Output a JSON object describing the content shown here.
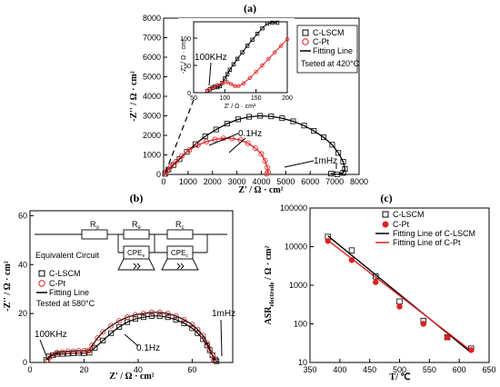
{
  "chart_data": [
    {
      "panel": "(a)",
      "type": "scatter",
      "xlabel": "Z' / Ω · cm²",
      "ylabel": "-Z'' / Ω · cm²",
      "xlim": [
        0,
        8000
      ],
      "ylim": [
        0,
        8000
      ],
      "xticks": [
        "0",
        "1000",
        "2000",
        "3000",
        "4000",
        "5000",
        "6000",
        "7000",
        "8000"
      ],
      "yticks": [
        "0",
        "1000",
        "2000",
        "3000",
        "4000",
        "5000",
        "6000",
        "7000",
        "8000"
      ],
      "legend": {
        "position": "top-right",
        "items": [
          "C-LSCM",
          "C-Pt",
          "Fitting Line"
        ],
        "note": "Tseted at 420°C"
      },
      "annotations": [
        "0.1Hz",
        "1mHz"
      ],
      "series": [
        {
          "name": "C-LSCM",
          "marker": "square",
          "color": "#000000",
          "x": [
            60,
            200,
            400,
            650,
            950,
            1300,
            1700,
            2150,
            2600,
            3050,
            3500,
            3950,
            4400,
            4850,
            5300,
            5750,
            6150,
            6550,
            6900,
            7150,
            7350,
            7420,
            7350,
            7100,
            6850
          ],
          "y": [
            30,
            250,
            480,
            780,
            1150,
            1550,
            1950,
            2300,
            2600,
            2820,
            2950,
            3000,
            2970,
            2880,
            2720,
            2500,
            2230,
            1900,
            1520,
            1100,
            650,
            280,
            80,
            0,
            40
          ]
        },
        {
          "name": "C-Pt",
          "marker": "circle",
          "color": "#e02020",
          "x": [
            60,
            150,
            300,
            500,
            750,
            1050,
            1400,
            1750,
            2100,
            2450,
            2800,
            3150,
            3450,
            3750,
            4000,
            4150,
            4250,
            4280,
            4220
          ],
          "y": [
            30,
            200,
            400,
            650,
            950,
            1250,
            1500,
            1680,
            1790,
            1850,
            1840,
            1760,
            1600,
            1350,
            1050,
            700,
            350,
            120,
            30
          ]
        }
      ],
      "inset": {
        "xlabel": "Z' / Ω · cm²",
        "ylabel": "-Z'' / Ω · cm²",
        "xlim": [
          50,
          200
        ],
        "ylim": [
          0,
          130
        ],
        "xticks": [
          "50",
          "100",
          "150",
          "200"
        ],
        "yticks": [
          "0",
          "50",
          "100"
        ],
        "annotation": "100KHz",
        "series": [
          {
            "name": "C-LSCM",
            "x": [
              72,
              76,
              80,
              84,
              88,
              92,
              96,
              100,
              104,
              108,
              114,
              120,
              128,
              136,
              144,
              152,
              160,
              168,
              176,
              184
            ],
            "y": [
              3,
              6,
              9,
              11,
              10,
              12,
              18,
              26,
              34,
              42,
              52,
              62,
              74,
              86,
              97,
              108,
              118,
              127,
              134,
              140
            ]
          },
          {
            "name": "C-Pt",
            "x": [
              72,
              80,
              88,
              96,
              104,
              110,
              116,
              122,
              130,
              140,
              150,
              160,
              170,
              180,
              190,
              200
            ],
            "y": [
              4,
              8,
              14,
              18,
              19,
              16,
              12,
              12,
              17,
              27,
              38,
              50,
              62,
              74,
              86,
              98
            ]
          }
        ]
      }
    },
    {
      "panel": "(b)",
      "type": "scatter",
      "xlabel": "Z' / Ω · cm²",
      "ylabel": "-Z'' / Ω · cm²",
      "xlim": [
        0,
        75
      ],
      "ylim": [
        0,
        62
      ],
      "xticks": [
        "0",
        "20",
        "40",
        "60"
      ],
      "yticks": [
        "0",
        "20",
        "40",
        "60"
      ],
      "circuit": {
        "label": "Equivalent Circuit",
        "elements": [
          "R",
          "R",
          "R",
          "CPE",
          "CPE"
        ],
        "subscripts": [
          "o",
          "e",
          "c",
          "e",
          "c"
        ]
      },
      "legend": {
        "position": "center-left",
        "items": [
          "C-LSCM",
          "C-Pt",
          "Fitting Line"
        ],
        "note": "Tested at 580°C"
      },
      "annotations": [
        "100KHz",
        "0.1Hz",
        "1mHz"
      ],
      "series": [
        {
          "name": "C-LSCM",
          "marker": "square",
          "color": "#000000",
          "x": [
            6,
            7,
            8.5,
            10,
            12,
            14,
            16,
            18,
            20,
            22,
            24,
            27,
            30,
            33,
            36,
            39,
            42,
            45,
            48,
            51,
            54,
            57,
            60,
            62,
            64,
            65.5,
            66.5,
            67.5,
            68.5,
            69
          ],
          "y": [
            1,
            2.5,
            3,
            3.5,
            3.5,
            3.6,
            3.8,
            3.9,
            3.8,
            4,
            6,
            9,
            12,
            14.5,
            16.5,
            17.8,
            18.5,
            19,
            19,
            18.5,
            17.5,
            16,
            14,
            12,
            9.5,
            7,
            5,
            3,
            1.2,
            0.5
          ]
        },
        {
          "name": "C-Pt",
          "marker": "circle",
          "color": "#e02020",
          "x": [
            6.5,
            8,
            10,
            12,
            14,
            16,
            18,
            20,
            21,
            22,
            23,
            25,
            27,
            30,
            33,
            36,
            39,
            42,
            45,
            48,
            51,
            54,
            57,
            60,
            62,
            64,
            65.5,
            66.5,
            67.5,
            68
          ],
          "y": [
            1,
            3,
            4,
            4.2,
            4.5,
            4.6,
            4.8,
            4.8,
            4.7,
            5,
            7,
            10,
            12.5,
            15,
            17,
            18.5,
            19.5,
            20,
            20.5,
            20.5,
            20,
            19,
            17.5,
            15.5,
            13.5,
            11,
            8,
            5.5,
            3,
            1
          ]
        }
      ]
    },
    {
      "panel": "(c)",
      "type": "scatter",
      "xlabel": "T/ ℃",
      "ylabel": "ASR",
      "ylabel_sub": "electrode",
      "ylabel_unit": " / Ω · cm²",
      "xlim": [
        350,
        650
      ],
      "ylim": [
        10,
        100000
      ],
      "yscale": "log",
      "xticks": [
        "350",
        "400",
        "450",
        "500",
        "550",
        "600",
        "650"
      ],
      "yticks": [
        "10",
        "100",
        "1000",
        "10000",
        "100000"
      ],
      "legend": {
        "position": "top-right",
        "items": [
          "C-LSCM",
          "C-Pt",
          "Fitting Line of C-LSCM",
          "Fitting Line of C-Pt"
        ]
      },
      "series": [
        {
          "name": "C-LSCM",
          "marker": "square",
          "color": "#000000",
          "x": [
            380,
            420,
            460,
            500,
            540,
            580,
            620
          ],
          "y": [
            18000,
            8000,
            1700,
            380,
            120,
            45,
            23
          ]
        },
        {
          "name": "C-Pt",
          "marker": "circle",
          "color": "#e02020",
          "x": [
            380,
            420,
            460,
            500,
            540,
            580,
            620
          ],
          "y": [
            14000,
            4500,
            1200,
            280,
            100,
            45,
            21
          ]
        }
      ],
      "fits": [
        {
          "name": "Fitting Line of C-LSCM",
          "color": "#000000",
          "x": [
            380,
            620
          ],
          "y": [
            19000,
            18
          ]
        },
        {
          "name": "Fitting Line of C-Pt",
          "color": "#e02020",
          "x": [
            380,
            620
          ],
          "y": [
            14500,
            20
          ]
        }
      ]
    }
  ]
}
